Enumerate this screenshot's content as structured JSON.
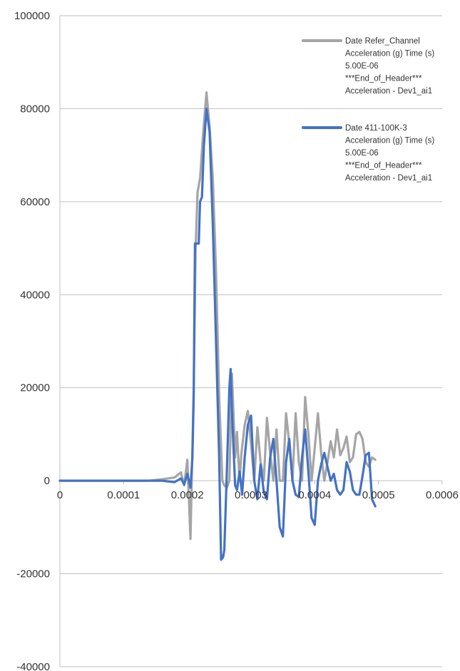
{
  "chart_data": {
    "type": "line",
    "title": "",
    "xlabel": "",
    "ylabel": "",
    "xlim": [
      0,
      0.0006
    ],
    "ylim": [
      -40000,
      100000
    ],
    "x_ticks": [
      "0",
      "0.0001",
      "0.0002",
      "0.0003",
      "0.0004",
      "0.0005",
      "0.0006"
    ],
    "y_ticks": [
      "100000",
      "80000",
      "60000",
      "40000",
      "20000",
      "0",
      "-20000",
      "-40000"
    ],
    "grid": {
      "horizontal": true,
      "vertical": false
    },
    "legend_position": "top-right",
    "series": [
      {
        "name": "Date Refer_Channel Acceleration (g) Time (s) 5.00E-06 ***End_of_Header*** Acceleration - Dev1_ai1",
        "legend_lines": [
          "Date Refer_Channel",
          "Acceleration (g) Time (s)",
          "5.00E-06",
          "***End_of_Header***",
          "Acceleration - Dev1_ai1"
        ],
        "color": "#A5A5A5",
        "x": [
          0,
          0.00014,
          0.00016,
          0.00018,
          0.00019,
          0.000195,
          0.0002,
          0.000205,
          0.00021,
          0.000213,
          0.000216,
          0.00022,
          0.000225,
          0.00023,
          0.000235,
          0.00024,
          0.000245,
          0.00025,
          0.000255,
          0.000258,
          0.000262,
          0.000266,
          0.00027,
          0.000275,
          0.000278,
          0.000282,
          0.000285,
          0.00029,
          0.000295,
          0.0003,
          0.000305,
          0.00031,
          0.000315,
          0.00032,
          0.000325,
          0.00033,
          0.000335,
          0.00034,
          0.000345,
          0.00035,
          0.000355,
          0.00036,
          0.000365,
          0.00037,
          0.000375,
          0.00038,
          0.000385,
          0.00039,
          0.000395,
          0.0004,
          0.000405,
          0.00041,
          0.000415,
          0.00042,
          0.000425,
          0.00043,
          0.000435,
          0.00044,
          0.000445,
          0.00045,
          0.000455,
          0.00046,
          0.000465,
          0.00047,
          0.000475,
          0.00048,
          0.000485,
          0.00049,
          0.000495
        ],
        "y": [
          0,
          0,
          300,
          700,
          1800,
          -1000,
          4500,
          -12500,
          20000,
          50000,
          62000,
          65000,
          75000,
          83500,
          76000,
          65000,
          45000,
          18000,
          0,
          -1000,
          -1500,
          0,
          23000,
          5000,
          10500,
          0,
          6000,
          12000,
          15000,
          8000,
          0,
          11500,
          4000,
          0,
          13500,
          6000,
          0,
          11000,
          0,
          0,
          14500,
          8000,
          0,
          14500,
          4000,
          0,
          18000,
          10000,
          0,
          7000,
          14500,
          6000,
          0,
          4000,
          8500,
          5000,
          11000,
          5500,
          7000,
          9500,
          4000,
          5000,
          10000,
          10500,
          9000,
          4000,
          3000,
          5000,
          4500
        ]
      },
      {
        "name": "Date 411-100K-3 Acceleration (g) Time (s) 5.00E-06 ***End_of_Header*** Acceleration - Dev1_ai1",
        "legend_lines": [
          "Date 411-100K-3",
          "Acceleration (g) Time (s)",
          "5.00E-06",
          "***End_of_Header***",
          "Acceleration - Dev1_ai1"
        ],
        "color": "#4472C4",
        "x": [
          0,
          0.00014,
          0.00016,
          0.00018,
          0.00019,
          0.000195,
          0.0002,
          0.000205,
          0.000208,
          0.00021,
          0.000212,
          0.000215,
          0.000218,
          0.00022,
          0.000223,
          0.000226,
          0.00023,
          0.000235,
          0.00024,
          0.000245,
          0.00025,
          0.000253,
          0.000256,
          0.000258,
          0.000262,
          0.000266,
          0.000268,
          0.00027,
          0.000275,
          0.000278,
          0.000282,
          0.000286,
          0.00029,
          0.000295,
          0.0003,
          0.000305,
          0.00031,
          0.000315,
          0.00032,
          0.000325,
          0.00033,
          0.000335,
          0.00034,
          0.000345,
          0.00035,
          0.000355,
          0.00036,
          0.000365,
          0.00037,
          0.000375,
          0.00038,
          0.000385,
          0.00039,
          0.000395,
          0.0004,
          0.000405,
          0.00041,
          0.000415,
          0.00042,
          0.000425,
          0.00043,
          0.000435,
          0.00044,
          0.000445,
          0.00045,
          0.000455,
          0.00046,
          0.000465,
          0.00047,
          0.000475,
          0.00048,
          0.000485,
          0.00049,
          0.000495
        ],
        "y": [
          0,
          0,
          0,
          -300,
          500,
          -800,
          1500,
          -1500,
          5000,
          18000,
          51000,
          51000,
          51000,
          60000,
          61000,
          72000,
          80000,
          75000,
          55000,
          30000,
          5000,
          -17000,
          -16500,
          -15000,
          2000,
          20000,
          24000,
          15000,
          -1000,
          -2000,
          2000,
          -3000,
          5000,
          12000,
          14000,
          0,
          -4000,
          3500,
          -2500,
          -4000,
          5000,
          9000,
          0,
          -10000,
          -12000,
          4000,
          9000,
          0,
          -3000,
          -3500,
          5000,
          11000,
          2000,
          -8000,
          -9500,
          0,
          3500,
          6000,
          3000,
          0,
          1500,
          -2000,
          -3000,
          -2000,
          4000,
          2000,
          -2000,
          -3000,
          -3000,
          1000,
          5500,
          6000,
          -4000,
          -5500
        ]
      }
    ]
  }
}
